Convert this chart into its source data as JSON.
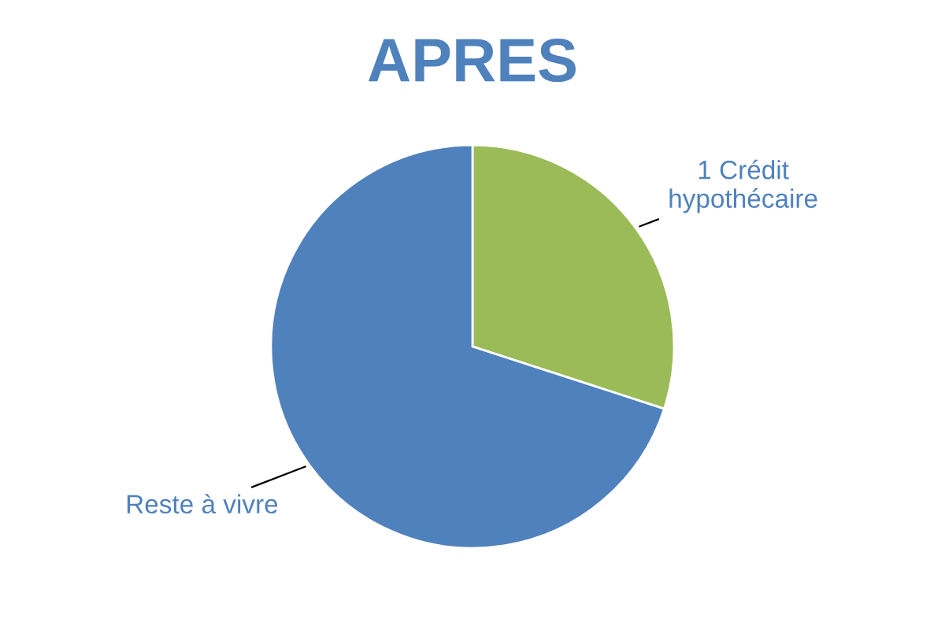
{
  "chart_data": {
    "type": "pie",
    "title": "APRES",
    "categories": [
      "1 Crédit\nhypothécaire",
      "Reste à vivre"
    ],
    "values": [
      30,
      70
    ],
    "colors": [
      "#9bbb59",
      "#4f81bd"
    ]
  }
}
